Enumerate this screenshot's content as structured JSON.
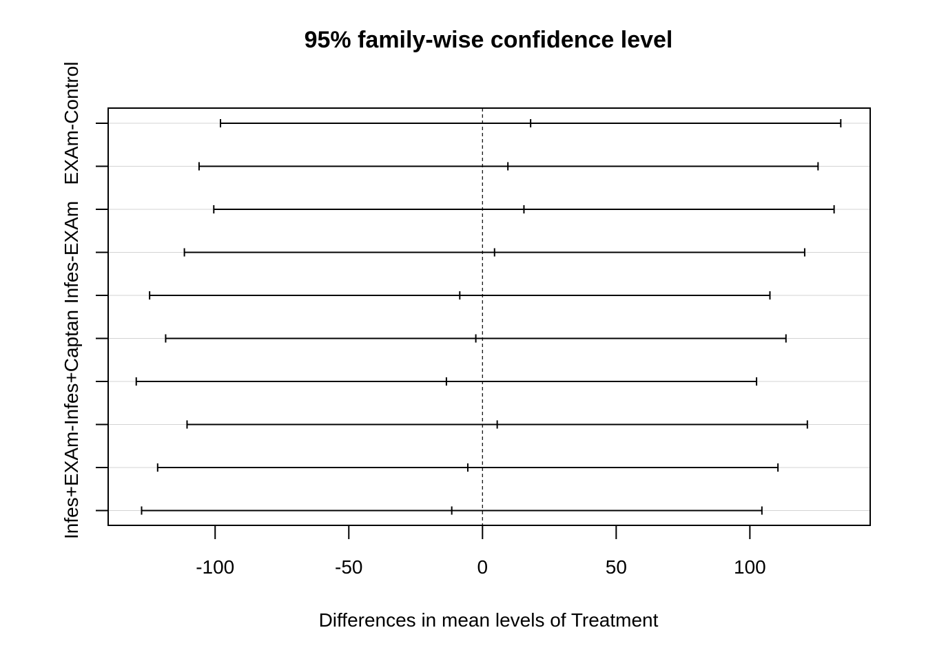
{
  "chart_data": {
    "type": "interval",
    "title": "95% family-wise confidence level",
    "xlabel": "Differences in mean levels of Treatment",
    "ylabel": "",
    "xlim": [
      -140,
      145
    ],
    "x_ticks": [
      -100,
      -50,
      0,
      50,
      100
    ],
    "x_tick_labels": [
      "-100",
      "-50",
      "0",
      "50",
      "100"
    ],
    "reference_line": 0,
    "grid": true,
    "y_labels": [
      "EXAm-Control",
      "Infes-EXAm",
      "Infes+EXAm-Infes+Captan"
    ],
    "comparisons": [
      {
        "label": "EXAm-Control",
        "show_label": true,
        "lwr": -98.0,
        "diff": 18.0,
        "upr": 134.0
      },
      {
        "label": "",
        "show_label": false,
        "lwr": -106.0,
        "diff": 9.5,
        "upr": 125.5
      },
      {
        "label": "",
        "show_label": false,
        "lwr": -100.5,
        "diff": 15.5,
        "upr": 131.5
      },
      {
        "label": "Infes-EXAm",
        "show_label": true,
        "lwr": -111.5,
        "diff": 4.5,
        "upr": 120.5
      },
      {
        "label": "",
        "show_label": false,
        "lwr": -124.5,
        "diff": -8.5,
        "upr": 107.5
      },
      {
        "label": "",
        "show_label": false,
        "lwr": -118.5,
        "diff": -2.5,
        "upr": 113.5
      },
      {
        "label": "",
        "show_label": false,
        "lwr": -129.5,
        "diff": -13.5,
        "upr": 102.5
      },
      {
        "label": "Infes+EXAm-Infes+Captan",
        "show_label": true,
        "lwr": -110.5,
        "diff": 5.5,
        "upr": 121.5
      },
      {
        "label": "",
        "show_label": false,
        "lwr": -121.5,
        "diff": -5.5,
        "upr": 110.5
      },
      {
        "label": "",
        "show_label": false,
        "lwr": -127.5,
        "diff": -11.5,
        "upr": 104.5
      }
    ],
    "colors": {
      "line": "#000000",
      "grid": "#d3d3d3",
      "background": "#ffffff"
    }
  }
}
